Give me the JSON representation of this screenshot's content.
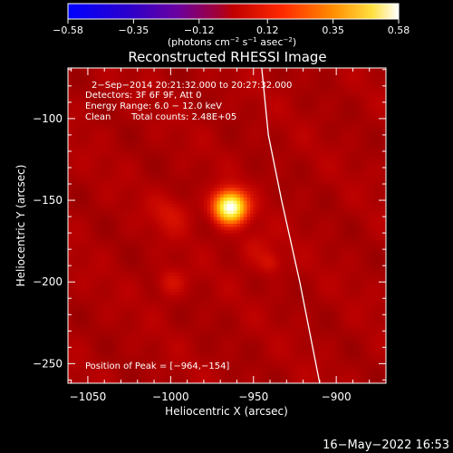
{
  "chart_data": {
    "type": "heatmap",
    "title": "Reconstructed RHESSI Image",
    "colorbar": {
      "ticks": [
        -0.58,
        -0.35,
        -0.12,
        0.12,
        0.35,
        0.58
      ],
      "tick_labels": [
        "−0.58",
        "−0.35",
        "−0.12",
        "0.12",
        "0.35",
        "0.58"
      ],
      "range": [
        -0.58,
        0.58
      ],
      "unit_prefix": "(photons cm",
      "unit_sup1": "−2",
      "unit_mid": " s",
      "unit_sup2": "−1",
      "unit_mid2": " asec",
      "unit_sup3": "−2",
      "unit_suffix": ")"
    },
    "xlabel": "Heliocentric X (arcsec)",
    "ylabel": "Heliocentric Y (arcsec)",
    "xlim": [
      -1062,
      -870
    ],
    "ylim": [
      -262,
      -69
    ],
    "xticks": [
      -1050,
      -1000,
      -950,
      -900
    ],
    "xtick_labels": [
      "−1050",
      "−1000",
      "−950",
      "−900"
    ],
    "yticks": [
      -100,
      -150,
      -200,
      -250
    ],
    "ytick_labels": [
      "−100",
      "−150",
      "−200",
      "−250"
    ],
    "annotations": {
      "time": "2−Sep−2014 20:21:32.000 to 20:27:32.000",
      "detectors": "Detectors: 3F 6F 9F, Att 0",
      "energy": "Energy Range: 6.0 − 12.0 keV",
      "clean": "Clean",
      "counts": "Total counts: 2.48E+05",
      "peak": "Position of Peak = [−964,−154]"
    },
    "peak": {
      "x": -964,
      "y": -154
    },
    "sources": [
      {
        "x": -964,
        "y": -154,
        "sigma": 6.5,
        "amp": 1.0
      },
      {
        "x": -1000,
        "y": -200,
        "sigma": 6,
        "amp": 0.12
      },
      {
        "x": -1000,
        "y": -158,
        "sigma": 8,
        "amp": 0.1
      },
      {
        "x": -940,
        "y": -188,
        "sigma": 5,
        "amp": 0.12
      },
      {
        "x": -950,
        "y": -178,
        "sigma": 7,
        "amp": 0.08
      }
    ],
    "limb": [
      [
        -945,
        -69
      ],
      [
        -941,
        -110
      ],
      [
        -933,
        -150
      ],
      [
        -922,
        -200
      ],
      [
        -910,
        -262
      ]
    ]
  },
  "footer_date": "16−May−2022 16:53"
}
